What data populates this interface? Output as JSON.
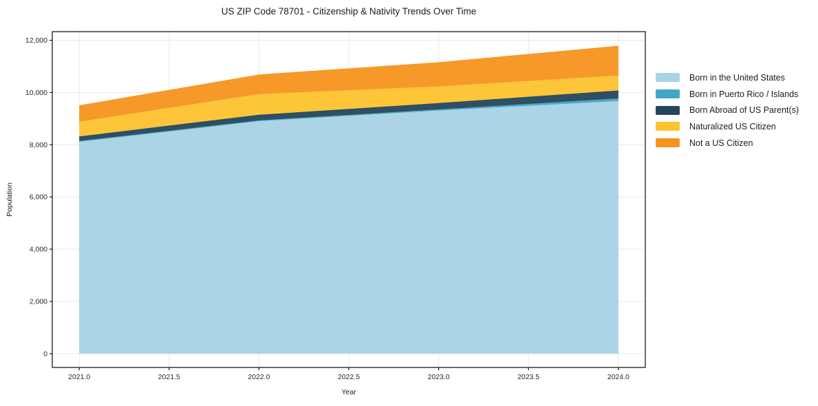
{
  "title": "US ZIP Code 78701 - Citizenship & Nativity Trends Over Time",
  "chart_data": {
    "type": "area",
    "stacked": true,
    "title": "US ZIP Code 78701 - Citizenship & Nativity Trends Over Time",
    "xlabel": "Year",
    "ylabel": "Population",
    "x": [
      2021,
      2022,
      2023,
      2024
    ],
    "series": [
      {
        "name": "Born in the United States",
        "color": "#A8D2E6",
        "values": [
          8110,
          8900,
          9310,
          9670
        ]
      },
      {
        "name": "Born in Puerto Rico / Islands",
        "color": "#41A7C5",
        "values": [
          30,
          30,
          40,
          100
        ]
      },
      {
        "name": "Born Abroad of US Parent(s)",
        "color": "#24465A",
        "values": [
          180,
          220,
          250,
          310
        ]
      },
      {
        "name": "Naturalized US Citizen",
        "color": "#FCC32D",
        "values": [
          560,
          790,
          630,
          570
        ]
      },
      {
        "name": "Not a US Citizen",
        "color": "#F6941E",
        "values": [
          630,
          750,
          930,
          1140
        ]
      }
    ],
    "stacked_totals": [
      9510,
      10690,
      11160,
      11790
    ],
    "x_tick_labels": [
      "2021.0",
      "2021.5",
      "2022.0",
      "2022.5",
      "2023.0",
      "2023.5",
      "2024.0"
    ],
    "x_tick_values": [
      2021,
      2021.5,
      2022,
      2022.5,
      2023,
      2023.5,
      2024
    ],
    "y_tick_labels": [
      "0",
      "2,000",
      "4,000",
      "6,000",
      "8,000",
      "10,000",
      "12,000"
    ],
    "y_tick_values": [
      0,
      2000,
      4000,
      6000,
      8000,
      10000,
      12000
    ],
    "xlim": [
      2020.85,
      2024.15
    ],
    "ylim": [
      -530,
      12330
    ],
    "grid": true,
    "legend_position": "right-outside",
    "grid_color": "#e8e8e8",
    "spine_color": "#1a1a1a"
  }
}
